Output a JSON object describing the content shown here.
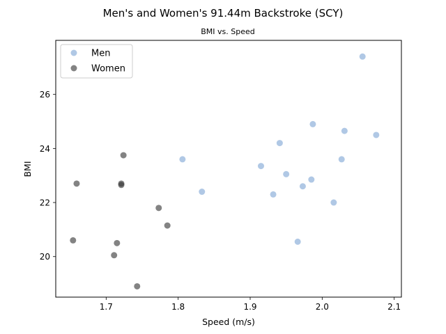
{
  "chart_data": {
    "type": "scatter",
    "suptitle": "Men's and Women's 91.44m Backstroke (SCY)",
    "title": "BMI vs. Speed",
    "xlabel": "Speed (m/s)",
    "ylabel": "BMI",
    "xlim": [
      1.63,
      2.11
    ],
    "ylim": [
      18.5,
      28.0
    ],
    "xticks": [
      1.7,
      1.8,
      1.9,
      2.0,
      2.1
    ],
    "yticks": [
      20,
      22,
      24,
      26
    ],
    "grid": false,
    "legend_position": "upper-left",
    "series": [
      {
        "name": "Men",
        "color": "#7ba3d4",
        "x": [
          1.806,
          1.833,
          1.915,
          1.932,
          1.941,
          1.95,
          1.966,
          1.973,
          1.985,
          1.987,
          2.016,
          2.027,
          2.031,
          2.056,
          2.075
        ],
        "y": [
          23.6,
          22.4,
          23.35,
          22.3,
          24.2,
          23.05,
          20.55,
          22.6,
          22.85,
          24.9,
          22.0,
          23.6,
          24.65,
          27.4,
          24.5
        ]
      },
      {
        "name": "Women",
        "color": "#303030",
        "x": [
          1.654,
          1.659,
          1.711,
          1.715,
          1.721,
          1.721,
          1.724,
          1.743,
          1.773,
          1.785
        ],
        "y": [
          20.6,
          22.7,
          20.05,
          20.5,
          22.7,
          22.65,
          23.75,
          18.9,
          21.8,
          21.15
        ]
      }
    ]
  }
}
